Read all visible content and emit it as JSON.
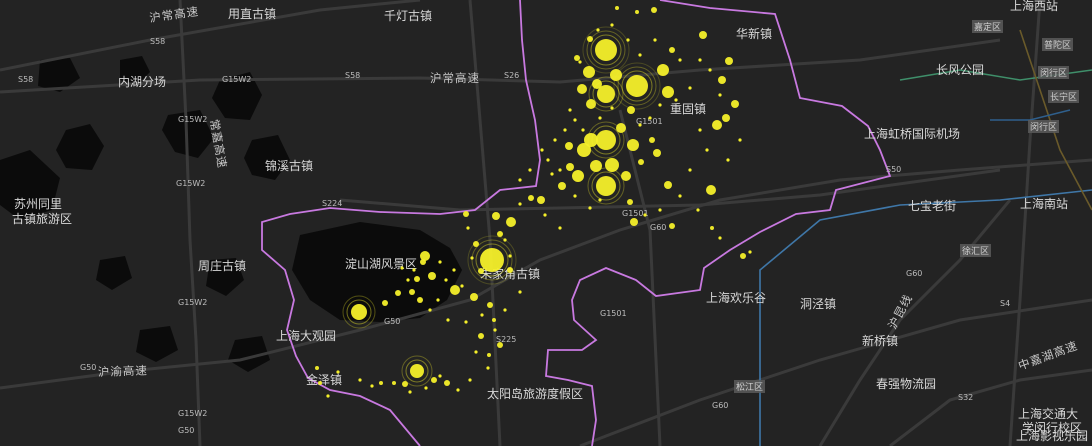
{
  "map": {
    "colors": {
      "background": "#232323",
      "water": "#0b0b0b",
      "road": "#3a3a3a",
      "boundary": "#c879e0",
      "hotspot": "#f5f02a",
      "transit_blue": "#3f77a8",
      "transit_green": "#3f8f6a"
    },
    "places": [
      {
        "id": "zhouzhuang",
        "text": "周庄古镇"
      },
      {
        "id": "luzhi",
        "text": "用直古镇"
      },
      {
        "id": "qiandeng",
        "text": "千灯古镇"
      },
      {
        "id": "jinxi",
        "text": "锦溪古镇"
      },
      {
        "id": "tongli1",
        "text": "苏州同里"
      },
      {
        "id": "tongli2",
        "text": "古镇旅游区"
      },
      {
        "id": "dianshan",
        "text": "淀山湖风景区"
      },
      {
        "id": "zhujiajiao",
        "text": "朱家角古镇"
      },
      {
        "id": "dagu",
        "text": "上海大观园"
      },
      {
        "id": "jinze",
        "text": "金泽镇"
      },
      {
        "id": "taiyang",
        "text": "太阳岛旅游度假区"
      },
      {
        "id": "huanle",
        "text": "上海欢乐谷"
      },
      {
        "id": "hongqiao",
        "text": "上海虹桥国际机场"
      },
      {
        "id": "changfeng",
        "text": "长风公园"
      },
      {
        "id": "qibao",
        "text": "七宝老街"
      },
      {
        "id": "shnanzhan",
        "text": "上海南站"
      },
      {
        "id": "shxizhan",
        "text": "上海西站"
      },
      {
        "id": "huaxin",
        "text": "华新镇"
      },
      {
        "id": "chonggu",
        "text": "重固镇"
      },
      {
        "id": "dongjing",
        "text": "洞泾镇"
      },
      {
        "id": "xinqiao",
        "text": "新桥镇"
      },
      {
        "id": "chunshen",
        "text": "春强物流园"
      },
      {
        "id": "yingshi1",
        "text": "上海影视乐园"
      },
      {
        "id": "jiaoda1",
        "text": "上海交通大"
      },
      {
        "id": "jiaoda2",
        "text": "学闵行校区"
      },
      {
        "id": "neihu",
        "text": "内湖分场"
      }
    ],
    "roads": [
      {
        "id": "huchang1",
        "text": "沪常高速"
      },
      {
        "id": "huchang2",
        "text": "沪常高速"
      },
      {
        "id": "huyu",
        "text": "沪渝高速"
      },
      {
        "id": "changjia",
        "text": "常嘉高速"
      },
      {
        "id": "zhongjia",
        "text": "中嘉湖高速"
      },
      {
        "id": "hukun",
        "text": "沪昆线"
      }
    ],
    "shields": [
      "S58",
      "S58",
      "S58",
      "G15W2",
      "G15W2",
      "G15W2",
      "G15W2",
      "S224",
      "G50",
      "G50",
      "G50",
      "G1501",
      "G1501",
      "G1501",
      "S225",
      "G60",
      "G60",
      "S32",
      "S4",
      "S50",
      "S26",
      "G15W2",
      "G60"
    ],
    "district_boxes": [
      "嘉定区",
      "闵行区",
      "闵行区",
      "松江区",
      "普陀区",
      "长宁区",
      "徐汇区"
    ]
  },
  "chart_data": {
    "type": "scatter",
    "description_units": "point = [easting, northing] on the map's own 1092x446 grid-free projection; r = relative magnitude",
    "hotspots": [
      [
        606,
        50,
        11,
        3
      ],
      [
        637,
        86,
        11,
        3
      ],
      [
        606,
        94,
        9,
        2
      ],
      [
        606,
        140,
        10,
        2
      ],
      [
        606,
        186,
        10,
        2
      ],
      [
        492,
        260,
        12,
        3
      ],
      [
        359,
        312,
        8,
        2
      ],
      [
        417,
        371,
        7,
        2
      ],
      [
        589,
        72,
        6
      ],
      [
        597,
        84,
        5
      ],
      [
        616,
        75,
        6
      ],
      [
        663,
        70,
        6
      ],
      [
        668,
        92,
        6
      ],
      [
        582,
        89,
        5
      ],
      [
        591,
        104,
        5
      ],
      [
        631,
        110,
        4
      ],
      [
        621,
        128,
        5
      ],
      [
        591,
        140,
        7
      ],
      [
        584,
        150,
        7
      ],
      [
        633,
        145,
        6
      ],
      [
        612,
        165,
        7
      ],
      [
        596,
        166,
        6
      ],
      [
        578,
        176,
        6
      ],
      [
        626,
        176,
        5
      ],
      [
        657,
        153,
        4
      ],
      [
        668,
        185,
        4
      ],
      [
        711,
        190,
        5
      ],
      [
        717,
        125,
        5
      ],
      [
        726,
        118,
        4
      ],
      [
        735,
        104,
        4
      ],
      [
        722,
        80,
        4
      ],
      [
        729,
        61,
        4
      ],
      [
        703,
        35,
        4
      ],
      [
        654,
        10,
        3
      ],
      [
        672,
        50,
        3
      ],
      [
        569,
        146,
        4
      ],
      [
        570,
        167,
        4
      ],
      [
        562,
        186,
        4
      ],
      [
        541,
        200,
        4
      ],
      [
        531,
        198,
        3
      ],
      [
        511,
        222,
        5
      ],
      [
        496,
        216,
        4
      ],
      [
        466,
        214,
        3
      ],
      [
        500,
        234,
        3
      ],
      [
        476,
        244,
        3
      ],
      [
        481,
        271,
        3
      ],
      [
        510,
        270,
        3
      ],
      [
        425,
        256,
        5
      ],
      [
        432,
        276,
        4
      ],
      [
        423,
        262,
        3
      ],
      [
        417,
        279,
        3
      ],
      [
        455,
        290,
        5
      ],
      [
        474,
        297,
        4
      ],
      [
        490,
        305,
        3
      ],
      [
        500,
        345,
        3
      ],
      [
        481,
        336,
        3
      ],
      [
        385,
        303,
        3
      ],
      [
        398,
        293,
        3
      ],
      [
        412,
        292,
        3
      ],
      [
        420,
        300,
        3
      ],
      [
        434,
        380,
        3
      ],
      [
        447,
        383,
        3
      ],
      [
        405,
        384,
        3
      ],
      [
        394,
        383,
        2
      ],
      [
        381,
        383,
        2
      ],
      [
        317,
        368,
        2
      ],
      [
        320,
        383,
        2
      ],
      [
        494,
        320,
        2
      ],
      [
        489,
        355,
        2
      ],
      [
        634,
        222,
        4
      ],
      [
        630,
        202,
        3
      ],
      [
        672,
        226,
        3
      ],
      [
        712,
        228,
        2
      ],
      [
        743,
        256,
        3
      ],
      [
        637,
        12,
        2
      ],
      [
        617,
        8,
        2
      ],
      [
        590,
        39,
        3
      ],
      [
        577,
        58,
        3
      ],
      [
        641,
        162,
        3
      ],
      [
        652,
        140,
        3
      ]
    ]
  }
}
